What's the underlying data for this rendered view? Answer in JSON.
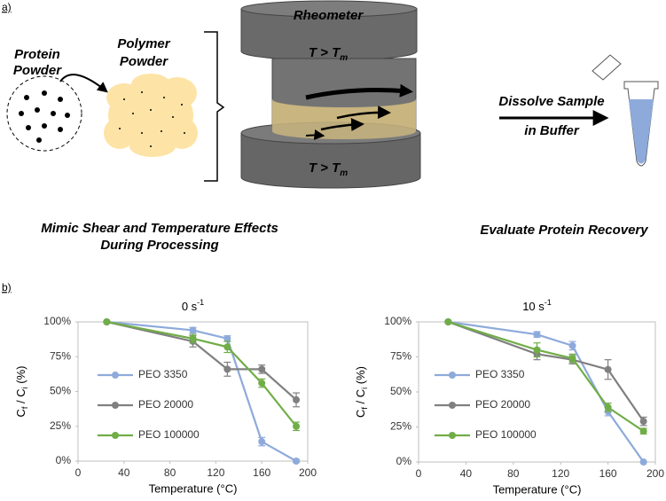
{
  "diagram": {
    "panel_a_label": "a)",
    "panel_b_label": "b)",
    "protein_powder": [
      "Protein",
      "Powder"
    ],
    "polymer_powder": [
      "Polymer",
      "Powder"
    ],
    "rheometer": "Rheometer",
    "temp_top": {
      "text": "T > T",
      "sub": "m"
    },
    "temp_bottom": {
      "text": "T > T",
      "sub": "m"
    },
    "dissolve": [
      "Dissolve Sample",
      "in Buffer"
    ],
    "mimic": [
      "Mimic Shear and Temperature Effects",
      "During Processing"
    ],
    "evaluate": "Evaluate Protein Recovery"
  },
  "chart_data": [
    {
      "type": "line",
      "title": "0 s",
      "title_sup": "-1",
      "xlabel": "Temperature (°C)",
      "ylabel_parts": [
        {
          "text": "C"
        },
        {
          "text": "f",
          "sub": true
        },
        {
          "text": " / C"
        },
        {
          "text": "i",
          "sub": true
        },
        {
          "text": " (%)"
        }
      ],
      "x": [
        25,
        100,
        130,
        160,
        190
      ],
      "series": [
        {
          "name": "PEO 3350",
          "color": "#8eaadb",
          "values": [
            100,
            94,
            88,
            14,
            0
          ],
          "errors": [
            0,
            2,
            2,
            3,
            1
          ]
        },
        {
          "name": "PEO 20000",
          "color": "#808080",
          "values": [
            100,
            86,
            66,
            66,
            44
          ],
          "errors": [
            0,
            4,
            5,
            3,
            5
          ]
        },
        {
          "name": "PEO 100000",
          "color": "#70ad47",
          "values": [
            100,
            88,
            82,
            56,
            25
          ],
          "errors": [
            0,
            3,
            4,
            3,
            3
          ]
        }
      ],
      "xlim": [
        0,
        200
      ],
      "xticks": [
        0,
        40,
        80,
        120,
        160,
        200
      ],
      "ylim": [
        0,
        100
      ],
      "yticks": [
        {
          "value": 0,
          "label": "0%"
        },
        {
          "value": 25,
          "label": "25%"
        },
        {
          "value": 50,
          "label": "50%"
        },
        {
          "value": 75,
          "label": "75%"
        },
        {
          "value": 100,
          "label": "100%"
        }
      ],
      "grid": false,
      "legend": "left"
    },
    {
      "type": "line",
      "title": "10 s",
      "title_sup": "-1",
      "xlabel": "Temperature (°C)",
      "ylabel_parts": [
        {
          "text": "C"
        },
        {
          "text": "f",
          "sub": true
        },
        {
          "text": " / C"
        },
        {
          "text": "i",
          "sub": true
        },
        {
          "text": " (%)"
        }
      ],
      "x": [
        25,
        100,
        130,
        160,
        190
      ],
      "series": [
        {
          "name": "PEO 3350",
          "color": "#8eaadb",
          "values": [
            100,
            91,
            83,
            36,
            0
          ],
          "errors": [
            0,
            2,
            3,
            3,
            0
          ]
        },
        {
          "name": "PEO 20000",
          "color": "#808080",
          "values": [
            100,
            77,
            73,
            66,
            29
          ],
          "errors": [
            0,
            4,
            3,
            7,
            3
          ]
        },
        {
          "name": "PEO 100000",
          "color": "#70ad47",
          "values": [
            100,
            80,
            74,
            39,
            22
          ],
          "errors": [
            0,
            5,
            3,
            3,
            2
          ]
        }
      ],
      "xlim": [
        0,
        200
      ],
      "xticks": [
        0,
        40,
        80,
        120,
        160,
        200
      ],
      "ylim": [
        0,
        100
      ],
      "yticks": [
        {
          "value": 0,
          "label": "0%"
        },
        {
          "value": 25,
          "label": "25%"
        },
        {
          "value": 50,
          "label": "50%"
        },
        {
          "value": 75,
          "label": "75%"
        },
        {
          "value": 100,
          "label": "100%"
        }
      ],
      "grid": false,
      "legend": "left"
    }
  ]
}
